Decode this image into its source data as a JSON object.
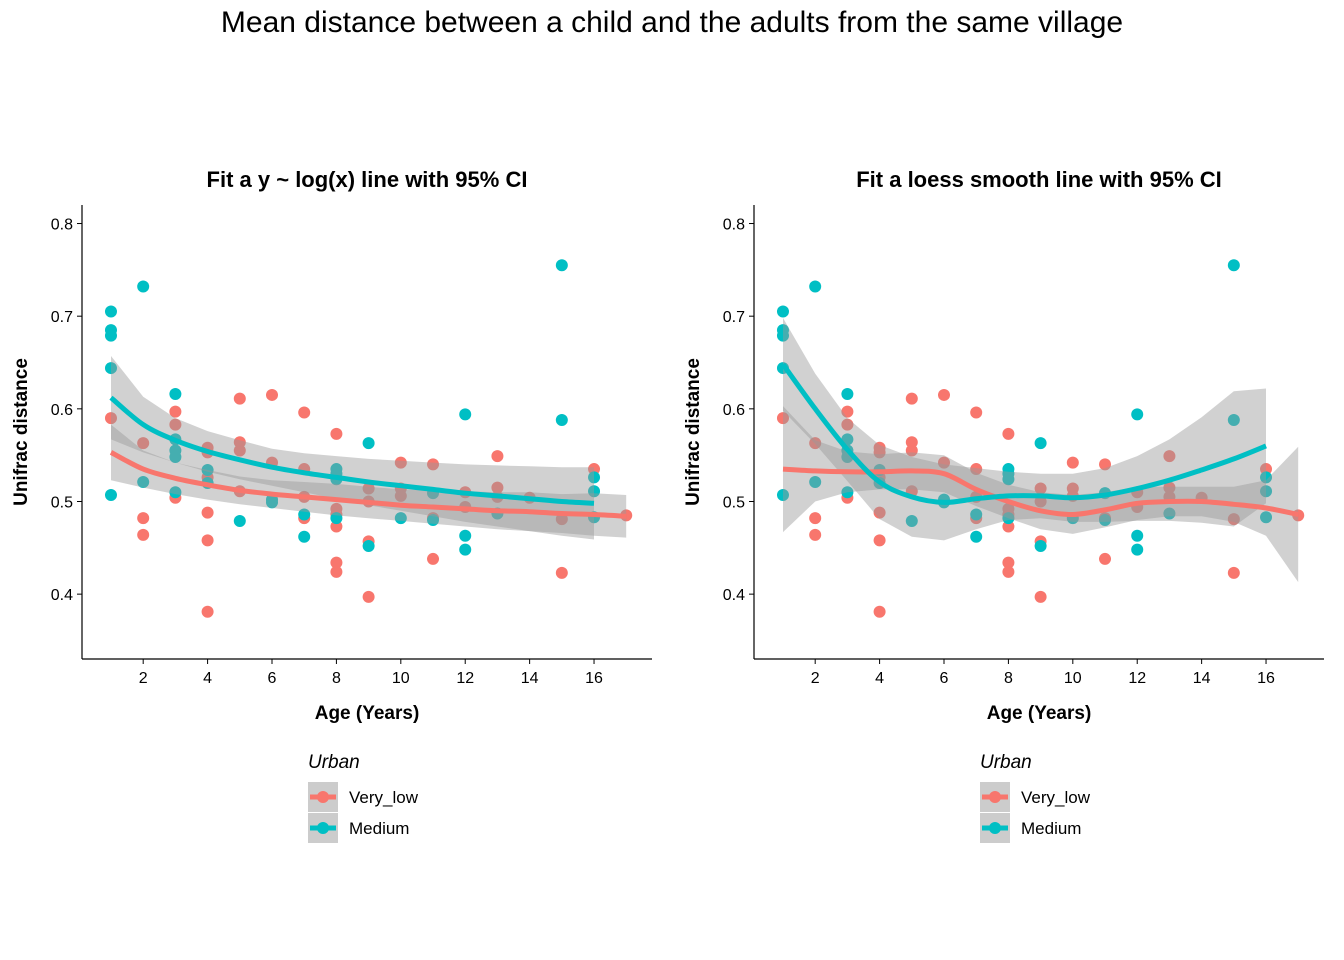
{
  "title": "Mean distance between a child and the adults from the same village",
  "colors": {
    "very_low": "#F8766D",
    "medium": "#00BFC4",
    "ribbon": "#999999",
    "axis": "#000000"
  },
  "chart_data": [
    {
      "type": "scatter",
      "title": "Fit a y ~ log(x) line with 95% CI",
      "xlabel": "Age (Years)",
      "ylabel": "Unifrac distance",
      "xlim": [
        0.1,
        17.8
      ],
      "ylim": [
        0.33,
        0.82
      ],
      "xticks": [
        2,
        4,
        6,
        8,
        10,
        12,
        14,
        16
      ],
      "yticks": [
        0.4,
        0.5,
        0.6,
        0.7,
        0.8
      ],
      "grid": false,
      "legend": {
        "title": "Urban",
        "placement": "bottom",
        "entries": [
          "Very_low",
          "Medium"
        ]
      },
      "series": [
        {
          "name": "Very_low",
          "color": "#F8766D",
          "points": [
            [
              1,
              0.59
            ],
            [
              2,
              0.563
            ],
            [
              2,
              0.482
            ],
            [
              2,
              0.464
            ],
            [
              3,
              0.597
            ],
            [
              3,
              0.583
            ],
            [
              3,
              0.504
            ],
            [
              4,
              0.558
            ],
            [
              4,
              0.553
            ],
            [
              4,
              0.526
            ],
            [
              4,
              0.488
            ],
            [
              4,
              0.458
            ],
            [
              4,
              0.381
            ],
            [
              5,
              0.611
            ],
            [
              5,
              0.564
            ],
            [
              5,
              0.555
            ],
            [
              5,
              0.511
            ],
            [
              6,
              0.615
            ],
            [
              6,
              0.542
            ],
            [
              7,
              0.596
            ],
            [
              7,
              0.535
            ],
            [
              7,
              0.505
            ],
            [
              7,
              0.482
            ],
            [
              8,
              0.573
            ],
            [
              8,
              0.492
            ],
            [
              8,
              0.486
            ],
            [
              8,
              0.473
            ],
            [
              8,
              0.434
            ],
            [
              8,
              0.424
            ],
            [
              9,
              0.514
            ],
            [
              9,
              0.5
            ],
            [
              9,
              0.457
            ],
            [
              9,
              0.397
            ],
            [
              10,
              0.542
            ],
            [
              10,
              0.514
            ],
            [
              10,
              0.506
            ],
            [
              11,
              0.54
            ],
            [
              11,
              0.482
            ],
            [
              11,
              0.438
            ],
            [
              12,
              0.51
            ],
            [
              12,
              0.494
            ],
            [
              13,
              0.549
            ],
            [
              13,
              0.515
            ],
            [
              13,
              0.505
            ],
            [
              14,
              0.504
            ],
            [
              15,
              0.481
            ],
            [
              15,
              0.423
            ],
            [
              16,
              0.535
            ],
            [
              17,
              0.485
            ]
          ],
          "fit": {
            "method": "log",
            "x": [
              1,
              2,
              3,
              4,
              5,
              6,
              7,
              8,
              9,
              10,
              11,
              12,
              13,
              14,
              15,
              16,
              17
            ],
            "y": [
              0.553,
              0.535,
              0.525,
              0.518,
              0.512,
              0.508,
              0.505,
              0.502,
              0.499,
              0.496,
              0.494,
              0.492,
              0.49,
              0.489,
              0.487,
              0.486,
              0.484
            ],
            "lo": [
              0.523,
              0.515,
              0.508,
              0.502,
              0.497,
              0.493,
              0.489,
              0.485,
              0.482,
              0.479,
              0.476,
              0.473,
              0.47,
              0.468,
              0.466,
              0.463,
              0.461
            ],
            "hi": [
              0.583,
              0.555,
              0.542,
              0.534,
              0.527,
              0.523,
              0.521,
              0.519,
              0.516,
              0.513,
              0.512,
              0.511,
              0.51,
              0.51,
              0.508,
              0.509,
              0.507
            ]
          }
        },
        {
          "name": "Medium",
          "color": "#00BFC4",
          "points": [
            [
              1,
              0.705
            ],
            [
              1,
              0.685
            ],
            [
              1,
              0.679
            ],
            [
              1,
              0.644
            ],
            [
              1,
              0.507
            ],
            [
              2,
              0.732
            ],
            [
              2,
              0.521
            ],
            [
              3,
              0.616
            ],
            [
              3,
              0.567
            ],
            [
              3,
              0.555
            ],
            [
              3,
              0.548
            ],
            [
              3,
              0.51
            ],
            [
              4,
              0.534
            ],
            [
              4,
              0.52
            ],
            [
              5,
              0.479
            ],
            [
              6,
              0.502
            ],
            [
              6,
              0.499
            ],
            [
              7,
              0.486
            ],
            [
              7,
              0.462
            ],
            [
              8,
              0.535
            ],
            [
              8,
              0.53
            ],
            [
              8,
              0.524
            ],
            [
              8,
              0.482
            ],
            [
              9,
              0.563
            ],
            [
              9,
              0.452
            ],
            [
              10,
              0.482
            ],
            [
              11,
              0.509
            ],
            [
              11,
              0.48
            ],
            [
              12,
              0.594
            ],
            [
              12,
              0.463
            ],
            [
              12,
              0.448
            ],
            [
              13,
              0.487
            ],
            [
              15,
              0.755
            ],
            [
              15,
              0.588
            ],
            [
              16,
              0.526
            ],
            [
              16,
              0.511
            ],
            [
              16,
              0.483
            ]
          ],
          "fit": {
            "method": "log",
            "x": [
              1,
              2,
              3,
              4,
              5,
              6,
              7,
              8,
              9,
              10,
              11,
              12,
              13,
              14,
              15,
              16
            ],
            "y": [
              0.612,
              0.583,
              0.566,
              0.554,
              0.545,
              0.537,
              0.531,
              0.526,
              0.521,
              0.517,
              0.513,
              0.509,
              0.506,
              0.503,
              0.5,
              0.498
            ],
            "lo": [
              0.567,
              0.553,
              0.542,
              0.532,
              0.524,
              0.517,
              0.51,
              0.503,
              0.496,
              0.49,
              0.484,
              0.478,
              0.473,
              0.468,
              0.463,
              0.459
            ],
            "hi": [
              0.657,
              0.613,
              0.59,
              0.576,
              0.566,
              0.557,
              0.552,
              0.549,
              0.546,
              0.544,
              0.542,
              0.54,
              0.539,
              0.538,
              0.537,
              0.537
            ]
          }
        }
      ]
    },
    {
      "type": "scatter",
      "title": "Fit a loess smooth line with 95% CI",
      "xlabel": "Age (Years)",
      "ylabel": "Unifrac distance",
      "xlim": [
        0.1,
        17.8
      ],
      "ylim": [
        0.33,
        0.82
      ],
      "xticks": [
        2,
        4,
        6,
        8,
        10,
        12,
        14,
        16
      ],
      "yticks": [
        0.4,
        0.5,
        0.6,
        0.7,
        0.8
      ],
      "grid": false,
      "legend": {
        "title": "Urban",
        "placement": "bottom",
        "entries": [
          "Very_low",
          "Medium"
        ]
      },
      "series": [
        {
          "name": "Very_low",
          "color": "#F8766D",
          "points": [
            [
              1,
              0.59
            ],
            [
              2,
              0.563
            ],
            [
              2,
              0.482
            ],
            [
              2,
              0.464
            ],
            [
              3,
              0.597
            ],
            [
              3,
              0.583
            ],
            [
              3,
              0.504
            ],
            [
              4,
              0.558
            ],
            [
              4,
              0.553
            ],
            [
              4,
              0.526
            ],
            [
              4,
              0.488
            ],
            [
              4,
              0.458
            ],
            [
              4,
              0.381
            ],
            [
              5,
              0.611
            ],
            [
              5,
              0.564
            ],
            [
              5,
              0.555
            ],
            [
              5,
              0.511
            ],
            [
              6,
              0.615
            ],
            [
              6,
              0.542
            ],
            [
              7,
              0.596
            ],
            [
              7,
              0.535
            ],
            [
              7,
              0.505
            ],
            [
              7,
              0.482
            ],
            [
              8,
              0.573
            ],
            [
              8,
              0.492
            ],
            [
              8,
              0.486
            ],
            [
              8,
              0.473
            ],
            [
              8,
              0.434
            ],
            [
              8,
              0.424
            ],
            [
              9,
              0.514
            ],
            [
              9,
              0.5
            ],
            [
              9,
              0.457
            ],
            [
              9,
              0.397
            ],
            [
              10,
              0.542
            ],
            [
              10,
              0.514
            ],
            [
              10,
              0.506
            ],
            [
              11,
              0.54
            ],
            [
              11,
              0.482
            ],
            [
              11,
              0.438
            ],
            [
              12,
              0.51
            ],
            [
              12,
              0.494
            ],
            [
              13,
              0.549
            ],
            [
              13,
              0.515
            ],
            [
              13,
              0.505
            ],
            [
              14,
              0.504
            ],
            [
              15,
              0.481
            ],
            [
              15,
              0.423
            ],
            [
              16,
              0.535
            ],
            [
              17,
              0.485
            ]
          ],
          "fit": {
            "method": "loess",
            "x": [
              1,
              2,
              3,
              4,
              5,
              6,
              7,
              8,
              9,
              10,
              11,
              12,
              13,
              14,
              15,
              16,
              17
            ],
            "y": [
              0.535,
              0.533,
              0.532,
              0.532,
              0.533,
              0.53,
              0.513,
              0.5,
              0.49,
              0.486,
              0.491,
              0.498,
              0.5,
              0.5,
              0.497,
              0.493,
              0.486
            ],
            "lo": [
              0.467,
              0.5,
              0.51,
              0.513,
              0.513,
              0.51,
              0.495,
              0.482,
              0.47,
              0.465,
              0.472,
              0.48,
              0.484,
              0.484,
              0.478,
              0.463,
              0.413
            ],
            "hi": [
              0.603,
              0.566,
              0.554,
              0.551,
              0.553,
              0.55,
              0.531,
              0.518,
              0.51,
              0.507,
              0.51,
              0.516,
              0.516,
              0.516,
              0.516,
              0.523,
              0.559
            ]
          }
        },
        {
          "name": "Medium",
          "color": "#00BFC4",
          "points": [
            [
              1,
              0.705
            ],
            [
              1,
              0.685
            ],
            [
              1,
              0.679
            ],
            [
              1,
              0.644
            ],
            [
              1,
              0.507
            ],
            [
              2,
              0.732
            ],
            [
              2,
              0.521
            ],
            [
              3,
              0.616
            ],
            [
              3,
              0.567
            ],
            [
              3,
              0.555
            ],
            [
              3,
              0.548
            ],
            [
              3,
              0.51
            ],
            [
              4,
              0.534
            ],
            [
              4,
              0.52
            ],
            [
              5,
              0.479
            ],
            [
              6,
              0.502
            ],
            [
              6,
              0.499
            ],
            [
              7,
              0.486
            ],
            [
              7,
              0.462
            ],
            [
              8,
              0.535
            ],
            [
              8,
              0.53
            ],
            [
              8,
              0.524
            ],
            [
              8,
              0.482
            ],
            [
              9,
              0.563
            ],
            [
              9,
              0.452
            ],
            [
              10,
              0.482
            ],
            [
              11,
              0.509
            ],
            [
              11,
              0.48
            ],
            [
              12,
              0.594
            ],
            [
              12,
              0.463
            ],
            [
              12,
              0.448
            ],
            [
              13,
              0.487
            ],
            [
              15,
              0.755
            ],
            [
              15,
              0.588
            ],
            [
              16,
              0.526
            ],
            [
              16,
              0.511
            ],
            [
              16,
              0.483
            ]
          ],
          "fit": {
            "method": "loess",
            "x": [
              1,
              2,
              3,
              4,
              5,
              6,
              7,
              8,
              9,
              10,
              11,
              12,
              13,
              14,
              15,
              16
            ],
            "y": [
              0.648,
              0.6,
              0.556,
              0.521,
              0.505,
              0.499,
              0.503,
              0.506,
              0.506,
              0.504,
              0.507,
              0.514,
              0.523,
              0.534,
              0.546,
              0.56
            ],
            "lo": [
              0.598,
              0.562,
              0.522,
              0.481,
              0.462,
              0.458,
              0.47,
              0.48,
              0.482,
              0.478,
              0.478,
              0.479,
              0.479,
              0.477,
              0.473,
              0.498
            ],
            "hi": [
              0.698,
              0.638,
              0.59,
              0.561,
              0.548,
              0.54,
              0.536,
              0.532,
              0.53,
              0.53,
              0.536,
              0.549,
              0.567,
              0.591,
              0.619,
              0.622
            ]
          }
        }
      ]
    }
  ]
}
